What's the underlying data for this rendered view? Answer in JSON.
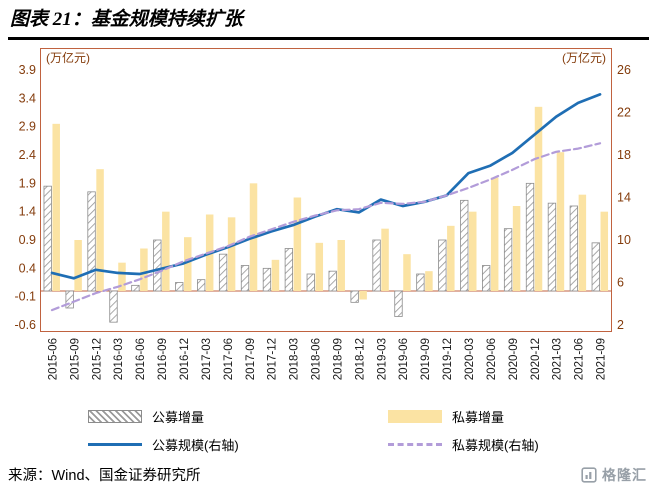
{
  "title": "图表 21：基金规模持续扩张",
  "source": "来源：Wind、国金证券研究所",
  "logo_text": "格隆汇",
  "legend": [
    "公募增量",
    "私募增量",
    "公募规模(右轴)",
    "私募规模(右轴)"
  ],
  "colors": {
    "frame": "#C0623F",
    "axis_text": "#843C0C",
    "bar_public_hatch": "#9a9a9a",
    "bar_public_border": "#8c8c8c",
    "bar_private": "#FBE3A3",
    "line_public": "#1F6EB4",
    "line_private": "#B29CD9",
    "x_label": "#1a1a1a",
    "logo_gray": "#98A0A8"
  },
  "chart_data": {
    "type": "bar+line combo, dual axis",
    "title": "基金规模持续扩张",
    "categories": [
      "2015-06",
      "2015-09",
      "2015-12",
      "2016-03",
      "2016-06",
      "2016-09",
      "2016-12",
      "2017-03",
      "2017-06",
      "2017-09",
      "2017-12",
      "2018-03",
      "2018-06",
      "2018-09",
      "2018-12",
      "2019-03",
      "2019-06",
      "2019-09",
      "2019-12",
      "2020-03",
      "2020-06",
      "2020-09",
      "2020-12",
      "2021-03",
      "2021-06",
      "2021-09"
    ],
    "left_axis": {
      "unit": "(万亿元)",
      "min": -0.6,
      "max": 3.9,
      "ticks": [
        3.9,
        3.4,
        2.9,
        2.4,
        1.9,
        1.4,
        0.9,
        0.4,
        -0.1,
        -0.6
      ]
    },
    "right_axis": {
      "unit": "(万亿元)",
      "min": 2,
      "max": 26,
      "ticks": [
        26,
        22,
        18,
        14,
        10,
        6,
        2
      ]
    },
    "grid": false,
    "legend_position": "bottom",
    "series": [
      {
        "name": "公募增量",
        "type": "bar",
        "axis": "left",
        "style": "hatched",
        "values": [
          1.85,
          -0.3,
          1.75,
          -0.55,
          0.1,
          0.9,
          0.15,
          0.2,
          0.65,
          0.45,
          0.4,
          0.75,
          0.3,
          0.35,
          -0.2,
          0.9,
          -0.45,
          0.3,
          0.9,
          1.6,
          0.45,
          1.1,
          1.9,
          1.55,
          1.5,
          0.85
        ]
      },
      {
        "name": "私募增量",
        "type": "bar",
        "axis": "left",
        "style": "solid",
        "color": "#FBE3A3",
        "values": [
          2.95,
          0.9,
          2.15,
          0.5,
          0.75,
          1.4,
          0.95,
          1.35,
          1.3,
          1.9,
          0.55,
          1.65,
          0.85,
          0.9,
          -0.15,
          1.1,
          0.65,
          0.35,
          1.15,
          1.4,
          2.0,
          1.5,
          3.25,
          2.45,
          1.7,
          1.4
        ]
      },
      {
        "name": "公募规模(右轴)",
        "type": "line",
        "axis": "right",
        "style": "solid",
        "color": "#1F6EB4",
        "values": [
          6.9,
          6.4,
          7.2,
          6.9,
          6.8,
          7.3,
          7.8,
          8.6,
          9.3,
          10.1,
          10.8,
          11.4,
          12.2,
          12.9,
          12.6,
          13.8,
          13.2,
          13.6,
          14.2,
          16.3,
          17.0,
          18.2,
          19.9,
          21.6,
          22.9,
          23.7
        ]
      },
      {
        "name": "私募规模(右轴)",
        "type": "line",
        "axis": "right",
        "style": "dashed",
        "color": "#B29CD9",
        "values": [
          3.4,
          4.2,
          5.0,
          5.6,
          6.3,
          7.1,
          8.0,
          8.7,
          9.4,
          10.3,
          11.0,
          11.7,
          12.3,
          12.8,
          12.9,
          13.5,
          13.4,
          13.6,
          14.2,
          14.9,
          15.7,
          16.6,
          17.6,
          18.3,
          18.6,
          19.1
        ]
      }
    ]
  }
}
